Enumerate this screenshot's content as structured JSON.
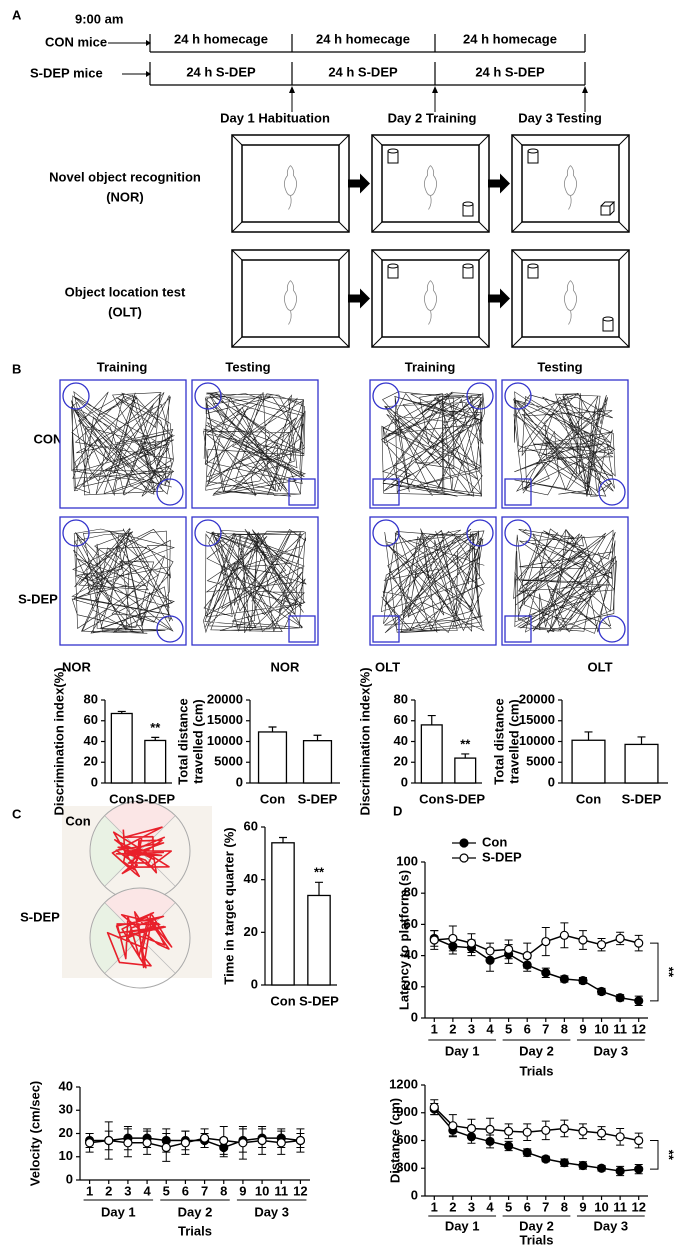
{
  "panel_a": {
    "label": "A",
    "time": "9:00 am",
    "groups": [
      "CON mice",
      "S-DEP mice"
    ],
    "con_blocks": [
      "24 h homecage",
      "24 h homecage",
      "24 h homecage"
    ],
    "sdep_blocks": [
      "24 h S-DEP",
      "24 h S-DEP",
      "24 h S-DEP"
    ],
    "days": [
      "Day 1 Habituation",
      "Day 2 Training",
      "Day 3 Testing"
    ],
    "tests": [
      {
        "name": "Novel object recognition",
        "abbr": "(NOR)"
      },
      {
        "name": "Object location test",
        "abbr": "(OLT)"
      }
    ]
  },
  "panel_b": {
    "label": "B",
    "phases": [
      "Training",
      "Testing",
      "Training",
      "Testing"
    ],
    "groups": [
      "CON",
      "S-DEP"
    ]
  },
  "panel_c": {
    "label": "C",
    "groups": [
      "Con",
      "S-DEP"
    ]
  },
  "panel_d": {
    "label": "D"
  },
  "chart_data": [
    {
      "type": "bar",
      "title": "NOR",
      "y_label": "Discrimination index(%)",
      "categories": [
        "Con",
        "S-DEP"
      ],
      "values": [
        67,
        41
      ],
      "errors": [
        2,
        3
      ],
      "annotation": "**",
      "ylim": [
        0,
        80
      ],
      "yticks": [
        0,
        20,
        40,
        60,
        80
      ],
      "color": "#ffffff"
    },
    {
      "type": "bar",
      "title": "NOR",
      "y_label": [
        "Total distance",
        "travelled (cm)"
      ],
      "categories": [
        "Con",
        "S-DEP"
      ],
      "values": [
        12300,
        10200
      ],
      "errors": [
        1200,
        1300
      ],
      "ylim": [
        0,
        20000
      ],
      "yticks": [
        0,
        5000,
        10000,
        15000,
        20000
      ],
      "color": "#ffffff"
    },
    {
      "type": "bar",
      "title": "OLT",
      "y_label": "Discrimination index(%)",
      "categories": [
        "Con",
        "S-DEP"
      ],
      "values": [
        56,
        24
      ],
      "errors": [
        9,
        4
      ],
      "annotation": "**",
      "ylim": [
        0,
        80
      ],
      "yticks": [
        0,
        20,
        40,
        60,
        80
      ],
      "color": "#ffffff"
    },
    {
      "type": "bar",
      "title": "OLT",
      "y_label": [
        "Total distance",
        "travelled (cm)"
      ],
      "categories": [
        "Con",
        "S-DEP"
      ],
      "values": [
        10300,
        9300
      ],
      "errors": [
        2000,
        1800
      ],
      "ylim": [
        0,
        20000
      ],
      "yticks": [
        0,
        5000,
        10000,
        15000,
        20000
      ],
      "color": "#ffffff"
    },
    {
      "type": "bar",
      "y_label": "Time in target quarter (%)",
      "categories": [
        "Con",
        "S-DEP"
      ],
      "values": [
        54,
        34
      ],
      "errors": [
        2,
        5
      ],
      "annotation": "**",
      "ylim": [
        0,
        60
      ],
      "yticks": [
        0,
        20,
        40,
        60
      ],
      "color": "#ffffff"
    },
    {
      "type": "line",
      "y_label": "Velocity (cm/sec)",
      "x_label": "Trials",
      "day_groups": [
        "Day 1",
        "Day 2",
        "Day 3"
      ],
      "x": [
        1,
        2,
        3,
        4,
        5,
        6,
        7,
        8,
        9,
        10,
        11,
        12
      ],
      "xticks": [
        1,
        2,
        3,
        4,
        5,
        6,
        7,
        8,
        9,
        10,
        11,
        12
      ],
      "xlim": [
        0.5,
        12.5
      ],
      "ylim": [
        0,
        40
      ],
      "yticks": [
        0,
        10,
        20,
        30,
        40
      ],
      "series": [
        {
          "color": "#000000",
          "marker": "filled",
          "values": [
            17,
            17,
            18,
            18,
            17,
            17,
            17,
            14,
            17,
            18,
            18,
            17
          ],
          "errors": [
            3,
            4,
            5,
            4,
            5,
            4,
            3,
            4,
            5,
            4,
            4,
            3
          ]
        },
        {
          "color": "#000000",
          "marker": "open",
          "values": [
            16,
            17,
            16,
            16,
            14,
            16,
            18,
            17,
            16,
            17,
            16,
            17
          ],
          "errors": [
            4,
            8,
            6,
            5,
            6,
            5,
            4,
            6,
            7,
            6,
            5,
            5
          ]
        }
      ]
    },
    {
      "type": "line",
      "y_label": "Latency to platform (s)",
      "x_label": "Trials",
      "day_groups": [
        "Day 1",
        "Day 2",
        "Day 3"
      ],
      "annotation": "**",
      "legend": true,
      "x": [
        1,
        2,
        3,
        4,
        5,
        6,
        7,
        8,
        9,
        10,
        11,
        12
      ],
      "xticks": [
        1,
        2,
        3,
        4,
        5,
        6,
        7,
        8,
        9,
        10,
        11,
        12
      ],
      "xlim": [
        0.5,
        12.5
      ],
      "ylim": [
        0,
        100
      ],
      "yticks": [
        0,
        20,
        40,
        60,
        80,
        100
      ],
      "series": [
        {
          "name": "Con",
          "color": "#000000",
          "marker": "filled",
          "values": [
            51,
            46,
            45,
            37,
            41,
            34,
            29,
            25,
            24,
            17,
            13,
            11
          ],
          "errors": [
            5,
            5,
            5,
            7,
            6,
            4,
            3,
            2,
            2,
            2,
            2,
            3
          ]
        },
        {
          "name": "S-DEP",
          "color": "#000000",
          "marker": "open",
          "values": [
            50,
            51,
            48,
            43,
            44,
            40,
            49,
            53,
            50,
            47,
            51,
            48
          ],
          "errors": [
            6,
            8,
            6,
            5,
            6,
            8,
            9,
            8,
            6,
            4,
            4,
            5
          ]
        }
      ]
    },
    {
      "type": "line",
      "y_label": "Distance (cm)",
      "x_label": "Trials",
      "day_groups": [
        "Day 1",
        "Day 2",
        "Day 3"
      ],
      "annotation": "**",
      "x": [
        1,
        2,
        3,
        4,
        5,
        6,
        7,
        8,
        9,
        10,
        11,
        12
      ],
      "xticks": [
        1,
        2,
        3,
        4,
        5,
        6,
        7,
        8,
        9,
        10,
        11,
        12
      ],
      "xlim": [
        0.5,
        12.5
      ],
      "ylim": [
        0,
        1200
      ],
      "yticks": [
        0,
        300,
        600,
        900,
        1200
      ],
      "series": [
        {
          "color": "#000000",
          "marker": "filled",
          "values": [
            940,
            710,
            640,
            590,
            540,
            470,
            400,
            360,
            330,
            300,
            270,
            290
          ],
          "errors": [
            60,
            60,
            70,
            70,
            50,
            40,
            30,
            40,
            40,
            30,
            50,
            50
          ]
        },
        {
          "color": "#000000",
          "marker": "open",
          "values": [
            960,
            760,
            730,
            720,
            700,
            690,
            710,
            730,
            700,
            680,
            640,
            600
          ],
          "errors": [
            80,
            120,
            100,
            120,
            80,
            90,
            100,
            90,
            80,
            70,
            90,
            80
          ]
        }
      ]
    }
  ]
}
